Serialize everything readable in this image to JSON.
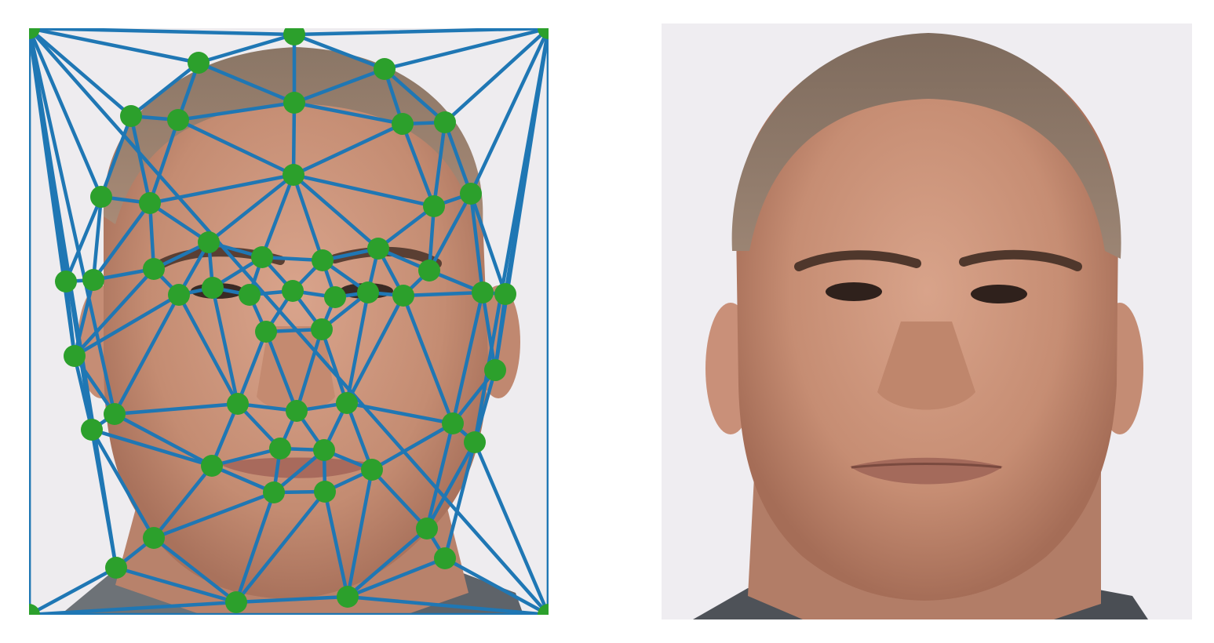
{
  "panels": [
    {
      "role": "face-with-delaunay-triangulation",
      "mesh_color": "#1f77b4",
      "landmark_color": "#2ca02c"
    },
    {
      "role": "averaged-morphed-face",
      "background_color": "#efedf1"
    }
  ]
}
